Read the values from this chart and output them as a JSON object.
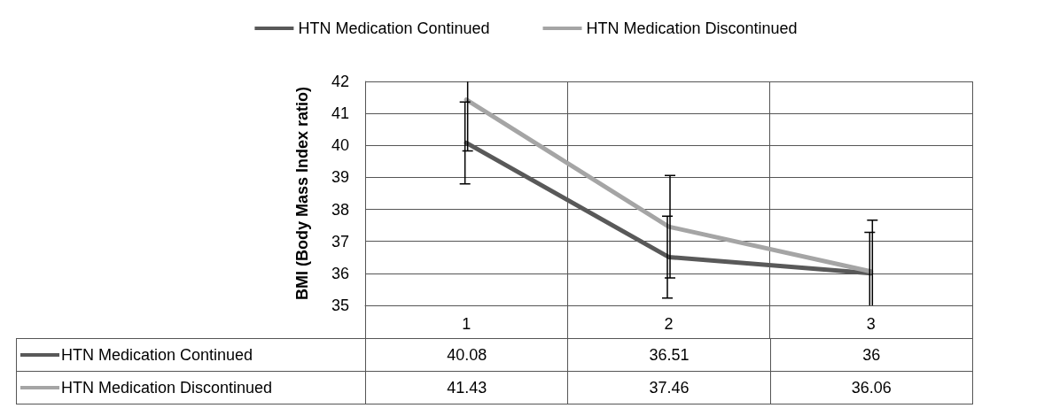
{
  "chart_data": {
    "type": "line",
    "ylabel": "BMI (Body Mass Index ratio)",
    "categories": [
      "1",
      "2",
      "3"
    ],
    "series": [
      {
        "name": "HTN Medication Continued",
        "color": "#595959",
        "values": [
          40.08,
          36.51,
          36
        ],
        "errors": [
          1.28,
          1.28,
          [
            35,
            37.28
          ]
        ]
      },
      {
        "name": "HTN Medication Discontinued",
        "color": "#a5a5a5",
        "values": [
          41.43,
          37.46,
          36.06
        ],
        "errors": [
          [
            39.83,
            42
          ],
          1.6,
          [
            35,
            37.66
          ]
        ]
      }
    ],
    "ylim": [
      35,
      42
    ],
    "yticks": [
      35,
      36,
      37,
      38,
      39,
      40,
      41,
      42
    ],
    "grid": true,
    "legend": "top",
    "marker": "none",
    "line_style": "solid",
    "data_labels": true
  }
}
